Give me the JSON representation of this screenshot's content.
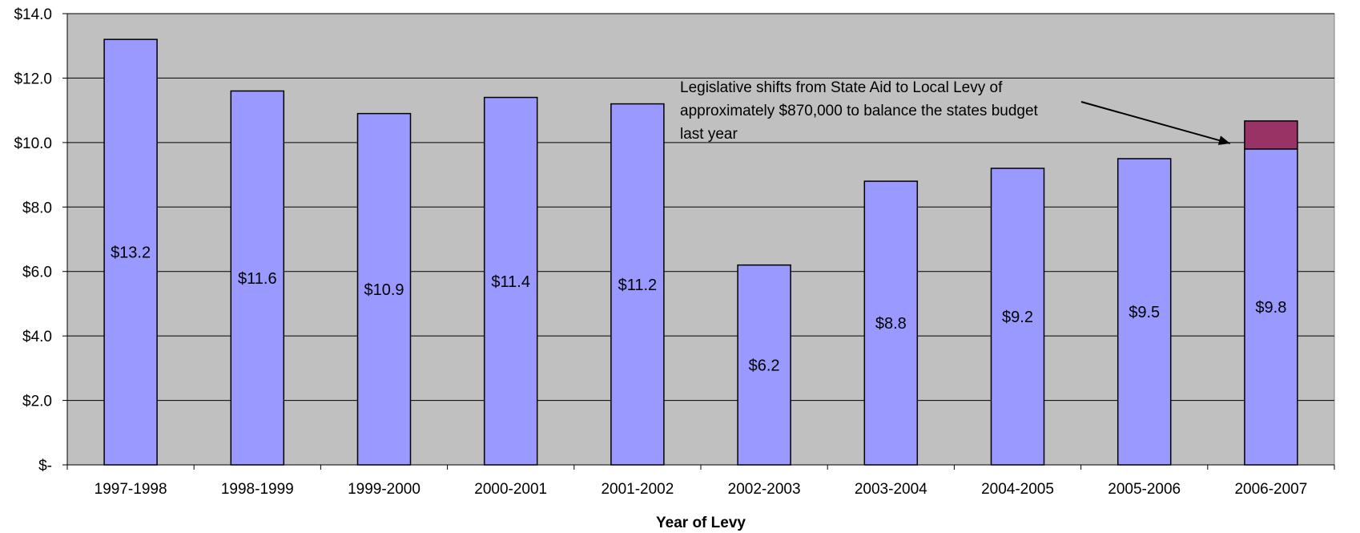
{
  "chart_data": {
    "type": "bar",
    "title": "",
    "xlabel": "Year of Levy",
    "ylabel": "",
    "categories": [
      "1997-1998",
      "1998-1999",
      "1999-2000",
      "2000-2001",
      "2001-2002",
      "2002-2003",
      "2003-2004",
      "2004-2005",
      "2005-2006",
      "2006-2007"
    ],
    "series": [
      {
        "values": [
          13.2,
          11.6,
          10.9,
          11.4,
          11.2,
          6.2,
          8.8,
          9.2,
          9.5,
          9.8
        ],
        "color": "#9999ff",
        "data_labels": [
          "$13.2",
          "$11.6",
          "$10.9",
          "$11.4",
          "$11.2",
          "$6.2",
          "$8.8",
          "$9.2",
          "$9.5",
          "$9.8"
        ]
      },
      {
        "values": [
          0,
          0,
          0,
          0,
          0,
          0,
          0,
          0,
          0,
          0.87
        ],
        "color": "#993366",
        "stacked": true
      }
    ],
    "ylim": [
      0,
      14
    ],
    "yticks": [
      0,
      2,
      4,
      6,
      8,
      10,
      12,
      14
    ],
    "ytick_labels": [
      "$-",
      "$2.0",
      "$4.0",
      "$6.0",
      "$8.0",
      "$10.0",
      "$12.0",
      "$14.0"
    ],
    "grid": true,
    "plot_background": "#c0c0c0",
    "annotation": {
      "lines": [
        "Legislative shifts from State Aid to Local Levy of",
        "approximately $870,000 to balance the states budget",
        "last year"
      ],
      "points_to": "2006-2007"
    }
  }
}
